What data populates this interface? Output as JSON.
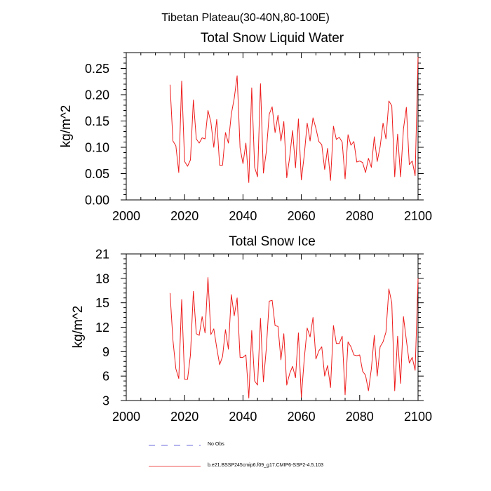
{
  "suptitle": "Tibetan Plateau(30-40N,80-100E)",
  "legend": {
    "obs_label": "No Obs",
    "obs_color": "#3b3bd4",
    "model_label": "b.e21.BSSP245cmip6.f09_g17.CMIP6-SSP2-4.5.103",
    "model_color": "#ee1c1c"
  },
  "chart_data": [
    {
      "type": "line",
      "title": "Total Snow Liquid Water",
      "xlabel": "",
      "ylabel": "kg/m^2",
      "xlim": [
        2000,
        2100
      ],
      "ylim": [
        0,
        0.28
      ],
      "xticks": [
        2000,
        2020,
        2040,
        2060,
        2080,
        2100
      ],
      "xtick_labels": [
        "2000",
        "2020",
        "2040",
        "2060",
        "2080",
        "2100"
      ],
      "yticks": [
        0,
        0.05,
        0.1,
        0.15,
        0.2,
        0.25
      ],
      "ytick_labels": [
        "0.00",
        "0.05",
        "0.10",
        "0.15",
        "0.20",
        "0.25"
      ],
      "grid": false,
      "series": [
        {
          "name": "b.e21.BSSP245cmip6.f09_g17.CMIP6-SSP2-4.5.103",
          "color": "#ee1c1c",
          "x": [
            2015,
            2016,
            2017,
            2018,
            2019,
            2020,
            2021,
            2022,
            2023,
            2024,
            2025,
            2026,
            2027,
            2028,
            2029,
            2030,
            2031,
            2032,
            2033,
            2034,
            2035,
            2036,
            2037,
            2038,
            2039,
            2040,
            2041,
            2042,
            2043,
            2044,
            2045,
            2046,
            2047,
            2048,
            2049,
            2050,
            2051,
            2052,
            2053,
            2054,
            2055,
            2056,
            2057,
            2058,
            2059,
            2060,
            2061,
            2062,
            2063,
            2064,
            2065,
            2066,
            2067,
            2068,
            2069,
            2070,
            2071,
            2072,
            2073,
            2074,
            2075,
            2076,
            2077,
            2078,
            2079,
            2080,
            2081,
            2082,
            2083,
            2084,
            2085,
            2086,
            2087,
            2088,
            2089,
            2090,
            2091,
            2092,
            2093,
            2094,
            2095,
            2096,
            2097,
            2098,
            2099,
            2100
          ],
          "values": [
            0.219,
            0.112,
            0.103,
            0.052,
            0.226,
            0.073,
            0.064,
            0.076,
            0.19,
            0.116,
            0.108,
            0.118,
            0.116,
            0.17,
            0.148,
            0.1,
            0.153,
            0.066,
            0.066,
            0.128,
            0.108,
            0.163,
            0.193,
            0.236,
            0.099,
            0.069,
            0.108,
            0.033,
            0.213,
            0.062,
            0.044,
            0.221,
            0.051,
            0.092,
            0.163,
            0.177,
            0.128,
            0.161,
            0.112,
            0.149,
            0.042,
            0.081,
            0.132,
            0.061,
            0.154,
            0.038,
            0.085,
            0.146,
            0.112,
            0.156,
            0.136,
            0.111,
            0.105,
            0.058,
            0.098,
            0.037,
            0.14,
            0.115,
            0.119,
            0.11,
            0.04,
            0.124,
            0.104,
            0.111,
            0.072,
            0.074,
            0.071,
            0.052,
            0.079,
            0.062,
            0.12,
            0.073,
            0.101,
            0.146,
            0.116,
            0.188,
            0.179,
            0.044,
            0.125,
            0.044,
            0.135,
            0.176,
            0.067,
            0.074,
            0.046,
            0.272
          ]
        }
      ]
    },
    {
      "type": "line",
      "title": "Total Snow Ice",
      "xlabel": "",
      "ylabel": "kg/m^2",
      "xlim": [
        2000,
        2100
      ],
      "ylim": [
        3,
        21
      ],
      "xticks": [
        2000,
        2020,
        2040,
        2060,
        2080,
        2100
      ],
      "xtick_labels": [
        "2000",
        "2020",
        "2040",
        "2060",
        "2080",
        "2100"
      ],
      "yticks": [
        3,
        6,
        9,
        12,
        15,
        18,
        21
      ],
      "ytick_labels": [
        "3",
        "6",
        "9",
        "12",
        "15",
        "18",
        "21"
      ],
      "grid": false,
      "series": [
        {
          "name": "b.e21.BSSP245cmip6.f09_g17.CMIP6-SSP2-4.5.103",
          "color": "#ee1c1c",
          "x": [
            2015,
            2016,
            2017,
            2018,
            2019,
            2020,
            2021,
            2022,
            2023,
            2024,
            2025,
            2026,
            2027,
            2028,
            2029,
            2030,
            2031,
            2032,
            2033,
            2034,
            2035,
            2036,
            2037,
            2038,
            2039,
            2040,
            2041,
            2042,
            2043,
            2044,
            2045,
            2046,
            2047,
            2048,
            2049,
            2050,
            2051,
            2052,
            2053,
            2054,
            2055,
            2056,
            2057,
            2058,
            2059,
            2060,
            2061,
            2062,
            2063,
            2064,
            2065,
            2066,
            2067,
            2068,
            2069,
            2070,
            2071,
            2072,
            2073,
            2074,
            2075,
            2076,
            2077,
            2078,
            2079,
            2080,
            2081,
            2082,
            2083,
            2084,
            2085,
            2086,
            2087,
            2088,
            2089,
            2090,
            2091,
            2092,
            2093,
            2094,
            2095,
            2096,
            2097,
            2098,
            2099,
            2100
          ],
          "values": [
            16.2,
            10.4,
            6.9,
            5.7,
            15.4,
            5.6,
            5.6,
            8.6,
            16.4,
            11.2,
            11.0,
            13.3,
            11.3,
            18.1,
            11.1,
            11.8,
            9.5,
            7.4,
            8.4,
            11.7,
            9.3,
            16.0,
            13.4,
            15.6,
            8.3,
            8.3,
            8.6,
            3.3,
            11.6,
            5.4,
            4.9,
            13.1,
            5.3,
            9.4,
            15.2,
            15.3,
            12.2,
            12.1,
            8.0,
            11.2,
            4.9,
            6.3,
            7.2,
            5.8,
            11.3,
            3.4,
            8.1,
            11.9,
            10.8,
            13.2,
            8.1,
            9.1,
            9.6,
            6.0,
            7.3,
            4.6,
            12.2,
            10.0,
            10.0,
            10.9,
            3.7,
            10.2,
            9.6,
            8.6,
            8.5,
            8.6,
            6.6,
            6.1,
            4.2,
            6.9,
            11.0,
            6.0,
            9.6,
            10.2,
            11.4,
            16.7,
            15.0,
            4.2,
            10.9,
            5.1,
            13.3,
            10.4,
            7.6,
            8.3,
            6.7,
            18.0
          ]
        }
      ]
    }
  ]
}
